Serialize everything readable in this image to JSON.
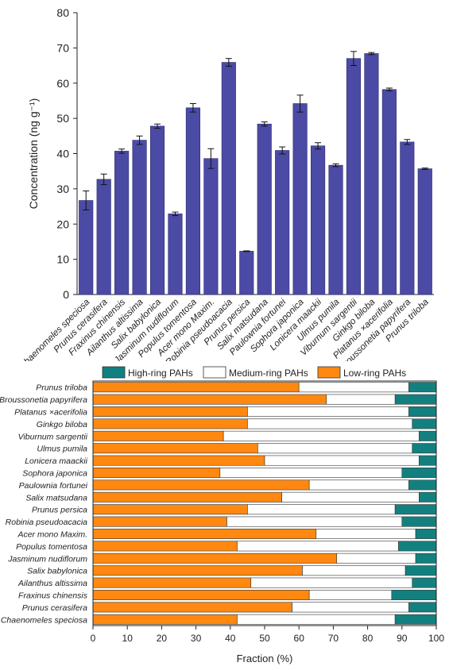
{
  "chart_data": [
    {
      "type": "bar",
      "title": "",
      "xlabel": "",
      "ylabel": "Concentration (ng g⁻¹)",
      "ylim": [
        0,
        80
      ],
      "yticks": [
        0,
        10,
        20,
        30,
        40,
        50,
        60,
        70,
        80
      ],
      "grid": false,
      "bar_color": "#4b4ba6",
      "categories": [
        "Chaenomeles speciosa",
        "Prunus cerasifera",
        "Fraxinus chinensis",
        "Ailanthus altissima",
        "Salix babylonica",
        "Jasminum nudiflorum",
        "Populus tomentosa",
        "Acer mono Maxim.",
        "Robinia pseudoacacia",
        "Prunus persica",
        "Salix matsudana",
        "Paulownia fortunei",
        "Sophora japonica",
        "Lonicera maackii",
        "Ulmus pumila",
        "Viburnum sargentii",
        "Ginkgo biloba",
        "Platanus ×acerifolia",
        "Broussonetia papyrifera",
        "Prunus triloba"
      ],
      "values": [
        26.7,
        32.7,
        40.7,
        43.8,
        47.8,
        22.9,
        53.0,
        38.6,
        65.9,
        12.3,
        48.4,
        40.9,
        54.2,
        42.2,
        36.7,
        67.0,
        68.4,
        58.2,
        43.3,
        35.7
      ],
      "errors": [
        2.7,
        1.5,
        0.6,
        1.2,
        0.6,
        0.5,
        1.2,
        2.8,
        1.1,
        0.1,
        0.6,
        1.0,
        2.4,
        0.9,
        0.4,
        2.0,
        0.3,
        0.4,
        0.7,
        0.2
      ]
    },
    {
      "type": "bar",
      "orientation": "horizontal",
      "stacked": true,
      "title": "",
      "xlabel": "Fraction (%)",
      "ylabel": "",
      "xlim": [
        0,
        100
      ],
      "xticks": [
        0,
        10,
        20,
        30,
        40,
        50,
        60,
        70,
        80,
        90,
        100
      ],
      "grid": false,
      "legend_position": "top",
      "legend": [
        {
          "name": "High-ring PAHs",
          "color": "#138080"
        },
        {
          "name": "Medium-ring PAHs",
          "color": "#ffffff"
        },
        {
          "name": "Low-ring PAHs",
          "color": "#ff8810"
        }
      ],
      "categories": [
        "Prunus triloba",
        "Broussonetia papyrifera",
        "Platanus ×acerifolia",
        "Ginkgo biloba",
        "Viburnum sargentii",
        "Ulmus pumila",
        "Lonicera maackii",
        "Sophora japonica",
        "Paulownia fortunei",
        "Salix matsudana",
        "Prunus persica",
        "Robinia pseudoacacia",
        "Acer mono Maxim.",
        "Populus tomentosa",
        "Jasminum nudiflorum",
        "Salix babylonica",
        "Ailanthus altissima",
        "Fraxinus chinensis",
        "Prunus cerasifera",
        "Chaenomeles speciosa"
      ],
      "series": [
        {
          "name": "Low-ring PAHs",
          "values": [
            60,
            68,
            45,
            45,
            38,
            48,
            50,
            37,
            63,
            55,
            45,
            39,
            65,
            42,
            71,
            61,
            46,
            63,
            58,
            42
          ]
        },
        {
          "name": "Medium-ring PAHs",
          "values": [
            32,
            20,
            47,
            48,
            57,
            45,
            45,
            53,
            29,
            40,
            43,
            51,
            29,
            47,
            23,
            30,
            47,
            24,
            34,
            46
          ]
        },
        {
          "name": "High-ring PAHs",
          "values": [
            8,
            12,
            8,
            7,
            5,
            7,
            5,
            10,
            8,
            5,
            12,
            10,
            6,
            11,
            6,
            9,
            7,
            13,
            8,
            12
          ]
        }
      ]
    }
  ]
}
